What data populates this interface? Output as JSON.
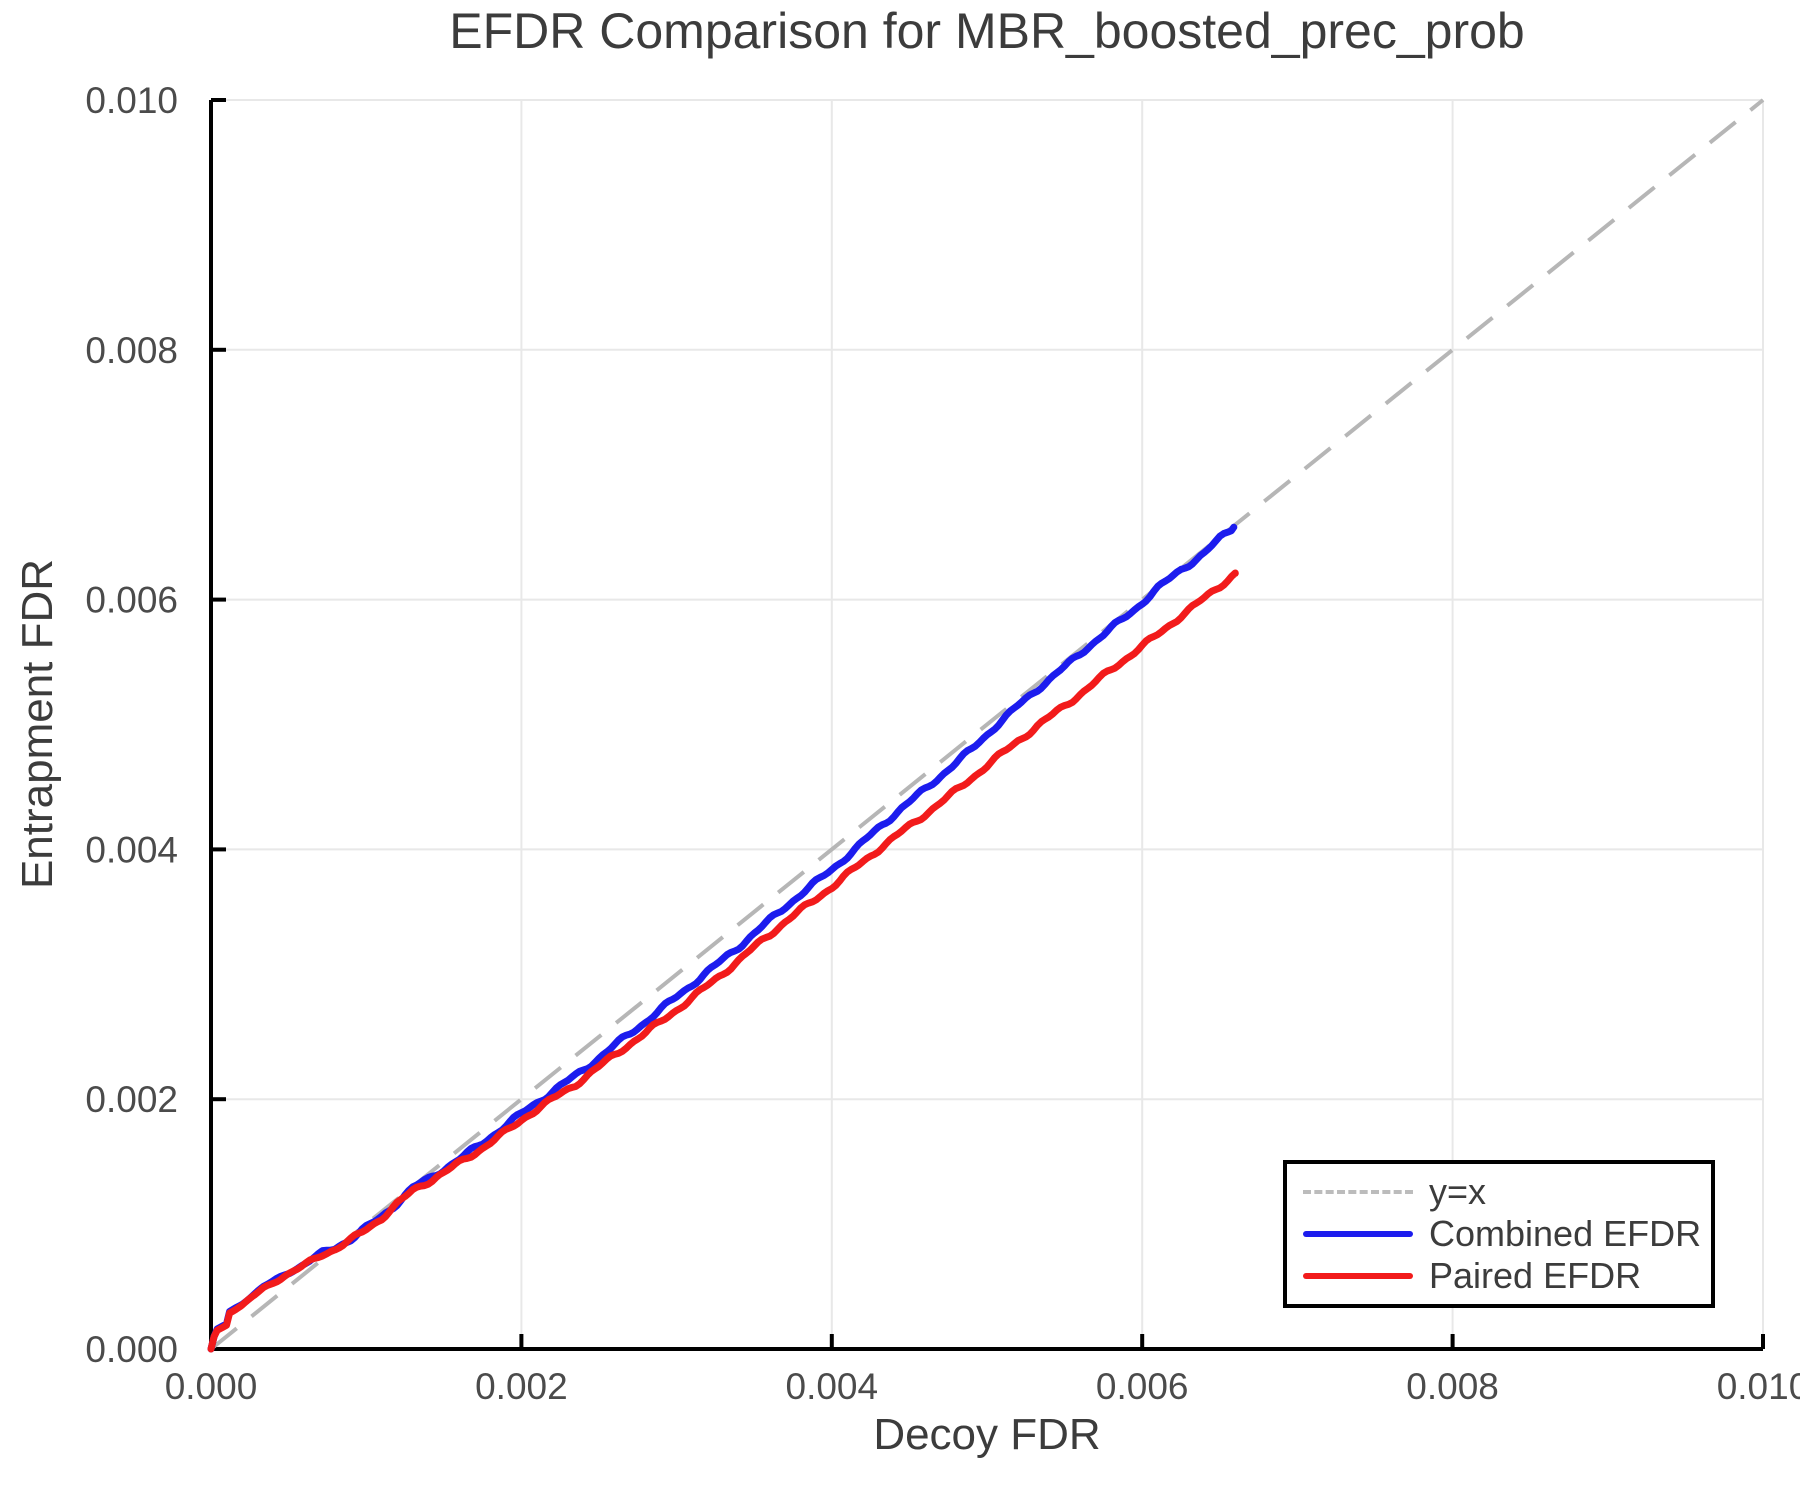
{
  "chart_data": {
    "type": "line",
    "title": "EFDR Comparison for MBR_boosted_prec_prob",
    "xlabel": "Decoy FDR",
    "ylabel": "Entrapment FDR",
    "xlim": [
      0,
      0.01
    ],
    "ylim": [
      0,
      0.01
    ],
    "grid": true,
    "xticks": {
      "values": [
        0,
        0.002,
        0.004,
        0.006,
        0.008,
        0.01
      ],
      "labels": [
        "0.000",
        "0.002",
        "0.004",
        "0.006",
        "0.008",
        "0.010"
      ]
    },
    "yticks": {
      "values": [
        0,
        0.002,
        0.004,
        0.006,
        0.008,
        0.01
      ],
      "labels": [
        "0.000",
        "0.002",
        "0.004",
        "0.006",
        "0.008",
        "0.010"
      ]
    },
    "legend": {
      "position": "lower-right",
      "entries": [
        {
          "label": "y=x",
          "style": "dashed",
          "color": "#bcbcbc"
        },
        {
          "label": "Combined EFDR",
          "style": "solid",
          "color": "#1c1cee"
        },
        {
          "label": "Paired EFDR",
          "style": "solid",
          "color": "#f21b1b"
        }
      ]
    },
    "style": {
      "reference_color": "#b6b6b6",
      "combined_color": "#1c1cee",
      "paired_color": "#f21b1b",
      "grid_color": "#e8e8e8",
      "axis_color": "#000000",
      "text_color": "#3c3c3c",
      "tick_text_color": "#4b4b4b",
      "background": "#ffffff"
    },
    "series": [
      {
        "name": "y=x",
        "role": "reference",
        "dashed": true,
        "points": [
          [
            0,
            0
          ],
          [
            0.01,
            0.01
          ]
        ]
      },
      {
        "name": "Combined EFDR",
        "role": "combined",
        "dashed": false,
        "points": [
          [
            0,
            0
          ],
          [
            2e-05,
            0.0001
          ],
          [
            4e-05,
            0.00016
          ],
          [
            7e-05,
            0.00018
          ],
          [
            0.0001,
            0.0002
          ],
          [
            0.00012,
            0.0003
          ],
          [
            0.00016,
            0.00033
          ],
          [
            0.0002,
            0.00036
          ],
          [
            0.00024,
            0.0004
          ],
          [
            0.00028,
            0.00044
          ],
          [
            0.00034,
            0.0005
          ],
          [
            0.0004,
            0.00054
          ],
          [
            0.00048,
            0.0006
          ],
          [
            0.00056,
            0.00065
          ],
          [
            0.00064,
            0.00071
          ],
          [
            0.00072,
            0.00077
          ],
          [
            0.0008,
            0.00081
          ],
          [
            0.0009,
            0.00088
          ],
          [
            0.001,
            0.00097
          ],
          [
            0.0011,
            0.00106
          ],
          [
            0.0012,
            0.00117
          ],
          [
            0.0013,
            0.00129
          ],
          [
            0.0014,
            0.00136
          ],
          [
            0.0015,
            0.00144
          ],
          [
            0.0016,
            0.00152
          ],
          [
            0.00175,
            0.00165
          ],
          [
            0.0019,
            0.00179
          ],
          [
            0.00205,
            0.00193
          ],
          [
            0.0022,
            0.00206
          ],
          [
            0.00235,
            0.00219
          ],
          [
            0.0025,
            0.00233
          ],
          [
            0.00265,
            0.00248
          ],
          [
            0.0028,
            0.00262
          ],
          [
            0.00295,
            0.00277
          ],
          [
            0.0031,
            0.00292
          ],
          [
            0.00325,
            0.00307
          ],
          [
            0.0034,
            0.00322
          ],
          [
            0.00355,
            0.00338
          ],
          [
            0.0037,
            0.00354
          ],
          [
            0.00385,
            0.00369
          ],
          [
            0.004,
            0.00384
          ],
          [
            0.00415,
            0.004
          ],
          [
            0.0043,
            0.00417
          ],
          [
            0.00445,
            0.00433
          ],
          [
            0.0046,
            0.00448
          ],
          [
            0.00475,
            0.00464
          ],
          [
            0.0049,
            0.0048
          ],
          [
            0.00505,
            0.00498
          ],
          [
            0.0052,
            0.00515
          ],
          [
            0.00535,
            0.00531
          ],
          [
            0.0055,
            0.00546
          ],
          [
            0.00565,
            0.00562
          ],
          [
            0.0058,
            0.00577
          ],
          [
            0.00595,
            0.00592
          ],
          [
            0.0061,
            0.00609
          ],
          [
            0.00625,
            0.00624
          ],
          [
            0.0064,
            0.00637
          ],
          [
            0.0065,
            0.00649
          ],
          [
            0.00659,
            0.00658
          ]
        ]
      },
      {
        "name": "Paired EFDR",
        "role": "paired",
        "dashed": false,
        "points": [
          [
            0,
            0
          ],
          [
            2e-05,
            0.0001
          ],
          [
            4e-05,
            0.00015
          ],
          [
            7e-05,
            0.00017
          ],
          [
            0.0001,
            0.00019
          ],
          [
            0.00012,
            0.00029
          ],
          [
            0.00016,
            0.00032
          ],
          [
            0.0002,
            0.00035
          ],
          [
            0.00024,
            0.00039
          ],
          [
            0.00028,
            0.00043
          ],
          [
            0.00034,
            0.00049
          ],
          [
            0.0004,
            0.00053
          ],
          [
            0.00048,
            0.00059
          ],
          [
            0.00056,
            0.00064
          ],
          [
            0.00064,
            0.0007
          ],
          [
            0.00072,
            0.00076
          ],
          [
            0.0008,
            0.0008
          ],
          [
            0.0009,
            0.00087
          ],
          [
            0.001,
            0.00096
          ],
          [
            0.0011,
            0.00105
          ],
          [
            0.0012,
            0.00116
          ],
          [
            0.0013,
            0.00127
          ],
          [
            0.0014,
            0.00134
          ],
          [
            0.0015,
            0.00141
          ],
          [
            0.0016,
            0.00149
          ],
          [
            0.00175,
            0.00161
          ],
          [
            0.0019,
            0.00174
          ],
          [
            0.00205,
            0.00188
          ],
          [
            0.0022,
            0.002
          ],
          [
            0.00235,
            0.00212
          ],
          [
            0.0025,
            0.00226
          ],
          [
            0.00265,
            0.0024
          ],
          [
            0.0028,
            0.00253
          ],
          [
            0.00295,
            0.00267
          ],
          [
            0.0031,
            0.00281
          ],
          [
            0.00325,
            0.00296
          ],
          [
            0.0034,
            0.00311
          ],
          [
            0.00355,
            0.00327
          ],
          [
            0.0037,
            0.00342
          ],
          [
            0.00385,
            0.00356
          ],
          [
            0.004,
            0.0037
          ],
          [
            0.00415,
            0.00385
          ],
          [
            0.0043,
            0.004
          ],
          [
            0.00445,
            0.00414
          ],
          [
            0.0046,
            0.00428
          ],
          [
            0.00475,
            0.00442
          ],
          [
            0.0049,
            0.00457
          ],
          [
            0.00505,
            0.00472
          ],
          [
            0.0052,
            0.00487
          ],
          [
            0.00535,
            0.00501
          ],
          [
            0.0055,
            0.00515
          ],
          [
            0.00565,
            0.00529
          ],
          [
            0.0058,
            0.00544
          ],
          [
            0.00595,
            0.00558
          ],
          [
            0.0061,
            0.00572
          ],
          [
            0.00625,
            0.00587
          ],
          [
            0.0064,
            0.00601
          ],
          [
            0.0065,
            0.00611
          ],
          [
            0.0066,
            0.00621
          ]
        ]
      }
    ]
  }
}
